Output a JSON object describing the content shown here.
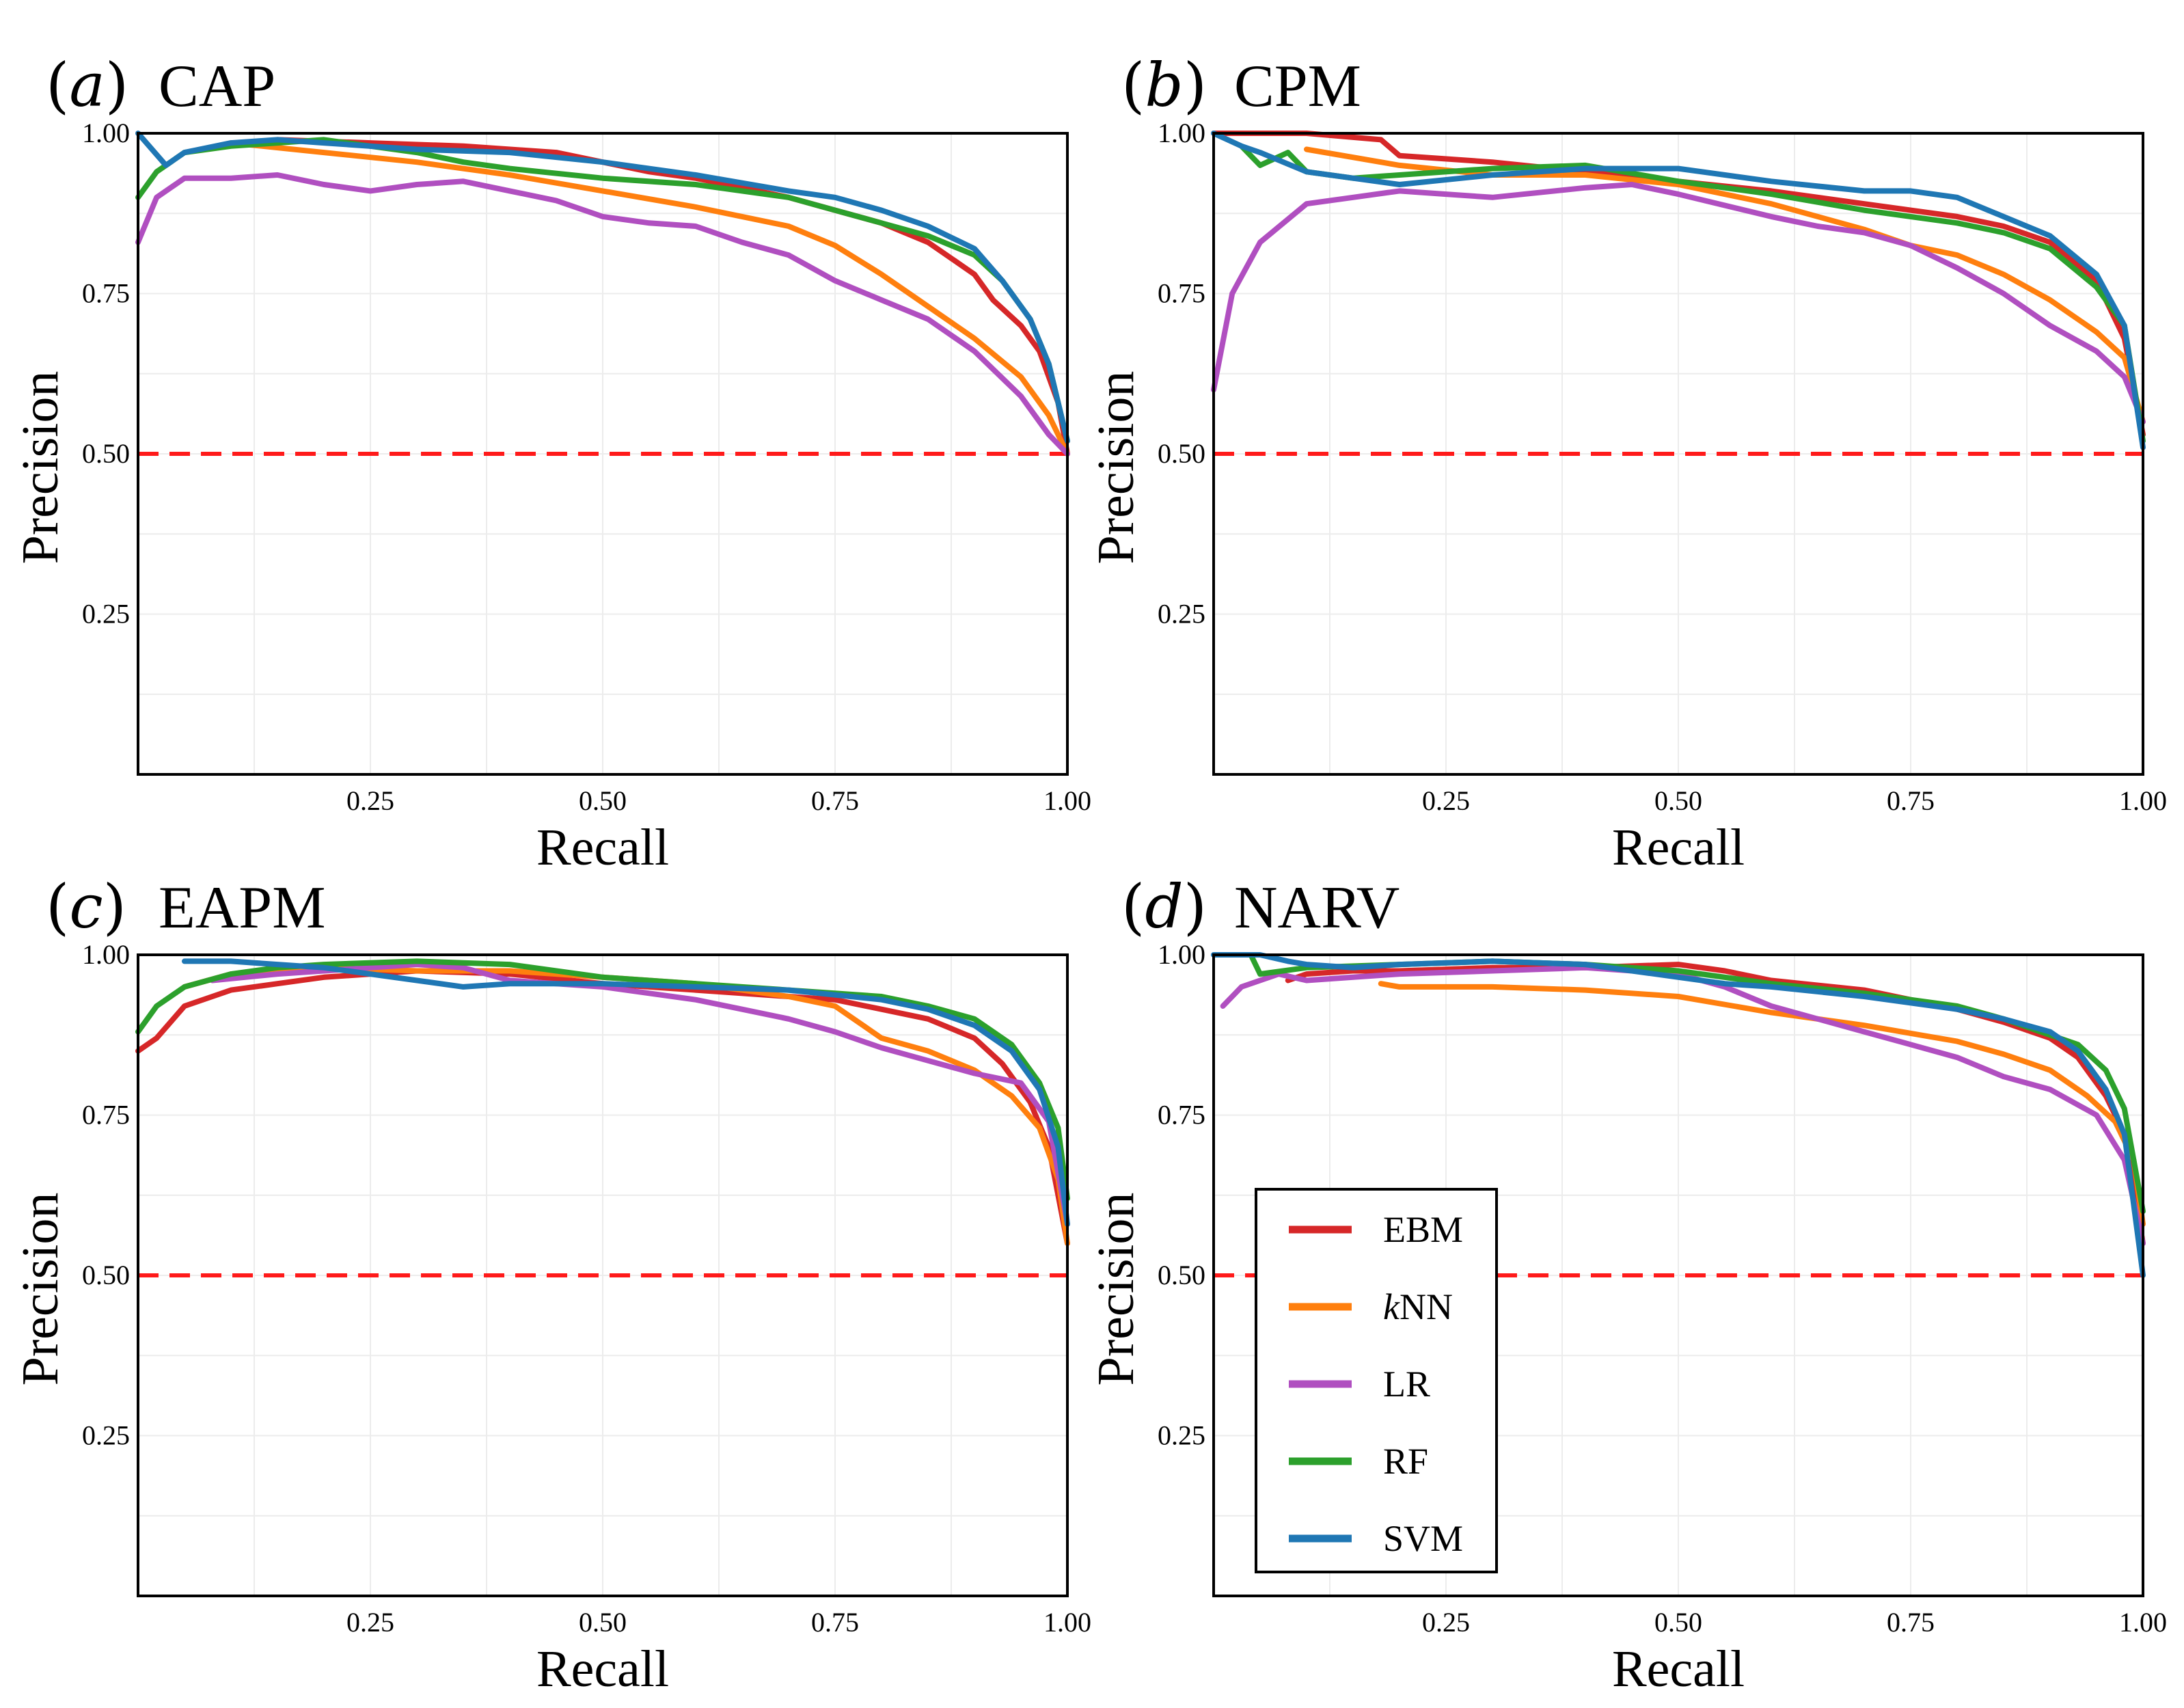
{
  "legend": {
    "items": [
      {
        "label": "EBM",
        "color": "#d62728"
      },
      {
        "label": "NN",
        "prefix": "k",
        "color": "#ff7f0e"
      },
      {
        "label": "LR",
        "color": "#b04fc0"
      },
      {
        "label": "RF",
        "color": "#2ca02c"
      },
      {
        "label": "SVM",
        "color": "#1f77b4"
      }
    ]
  },
  "chart_data": [
    {
      "type": "line",
      "panel": "a",
      "title": "CAP",
      "xlabel": "Recall",
      "ylabel": "Precision",
      "xlim": [
        0.0,
        1.0
      ],
      "ylim": [
        0.0,
        1.0
      ],
      "xticks": [
        "0.25",
        "0.50",
        "0.75",
        "1.00"
      ],
      "yticks": [
        "0.25",
        "0.50",
        "0.75",
        "1.00"
      ],
      "baseline": 0.5,
      "series": [
        {
          "name": "EBM",
          "x": [
            0.15,
            0.25,
            0.35,
            0.45,
            0.5,
            0.55,
            0.6,
            0.65,
            0.7,
            0.75,
            0.8,
            0.85,
            0.88,
            0.9,
            0.92,
            0.95,
            0.97,
            0.99,
            1.0
          ],
          "y": [
            0.99,
            0.985,
            0.98,
            0.97,
            0.955,
            0.94,
            0.93,
            0.915,
            0.9,
            0.88,
            0.86,
            0.83,
            0.8,
            0.78,
            0.74,
            0.7,
            0.66,
            0.58,
            0.5
          ]
        },
        {
          "name": "kNN",
          "x": [
            0.1,
            0.2,
            0.3,
            0.4,
            0.5,
            0.6,
            0.7,
            0.75,
            0.8,
            0.85,
            0.9,
            0.95,
            0.98,
            1.0
          ],
          "y": [
            0.985,
            0.97,
            0.955,
            0.935,
            0.91,
            0.885,
            0.855,
            0.825,
            0.78,
            0.73,
            0.68,
            0.62,
            0.56,
            0.5
          ]
        },
        {
          "name": "LR",
          "x": [
            0.0,
            0.02,
            0.05,
            0.1,
            0.15,
            0.2,
            0.25,
            0.3,
            0.35,
            0.4,
            0.45,
            0.5,
            0.55,
            0.6,
            0.65,
            0.7,
            0.75,
            0.8,
            0.85,
            0.9,
            0.95,
            0.98,
            1.0
          ],
          "y": [
            0.83,
            0.9,
            0.93,
            0.93,
            0.935,
            0.92,
            0.91,
            0.92,
            0.925,
            0.91,
            0.895,
            0.87,
            0.86,
            0.855,
            0.83,
            0.81,
            0.77,
            0.74,
            0.71,
            0.66,
            0.59,
            0.53,
            0.5
          ]
        },
        {
          "name": "RF",
          "x": [
            0.0,
            0.02,
            0.05,
            0.1,
            0.15,
            0.2,
            0.25,
            0.3,
            0.35,
            0.4,
            0.5,
            0.6,
            0.7,
            0.75,
            0.8,
            0.85,
            0.9,
            0.93,
            0.96,
            0.98,
            1.0
          ],
          "y": [
            0.9,
            0.94,
            0.97,
            0.98,
            0.985,
            0.99,
            0.98,
            0.97,
            0.955,
            0.945,
            0.93,
            0.92,
            0.9,
            0.88,
            0.86,
            0.84,
            0.81,
            0.77,
            0.71,
            0.64,
            0.52
          ]
        },
        {
          "name": "SVM",
          "x": [
            0.0,
            0.03,
            0.05,
            0.1,
            0.15,
            0.2,
            0.3,
            0.4,
            0.5,
            0.6,
            0.7,
            0.75,
            0.8,
            0.85,
            0.9,
            0.93,
            0.96,
            0.98,
            1.0
          ],
          "y": [
            1.0,
            0.95,
            0.97,
            0.985,
            0.99,
            0.985,
            0.975,
            0.97,
            0.955,
            0.935,
            0.91,
            0.9,
            0.88,
            0.855,
            0.82,
            0.77,
            0.71,
            0.64,
            0.52
          ]
        }
      ]
    },
    {
      "type": "line",
      "panel": "b",
      "title": "CPM",
      "xlabel": "Recall",
      "ylabel": "Precision",
      "xlim": [
        0.0,
        1.0
      ],
      "ylim": [
        0.0,
        1.0
      ],
      "xticks": [
        "0.25",
        "0.50",
        "0.75",
        "1.00"
      ],
      "yticks": [
        "0.25",
        "0.50",
        "0.75",
        "1.00"
      ],
      "baseline": 0.5,
      "series": [
        {
          "name": "EBM",
          "x": [
            0.0,
            0.1,
            0.18,
            0.2,
            0.3,
            0.4,
            0.5,
            0.6,
            0.7,
            0.8,
            0.85,
            0.9,
            0.95,
            0.98,
            1.0
          ],
          "y": [
            1.0,
            1.0,
            0.99,
            0.965,
            0.955,
            0.94,
            0.925,
            0.91,
            0.89,
            0.87,
            0.855,
            0.83,
            0.77,
            0.68,
            0.53
          ]
        },
        {
          "name": "kNN",
          "x": [
            0.1,
            0.2,
            0.3,
            0.4,
            0.5,
            0.6,
            0.7,
            0.75,
            0.8,
            0.85,
            0.9,
            0.95,
            0.98,
            1.0
          ],
          "y": [
            0.975,
            0.95,
            0.935,
            0.935,
            0.92,
            0.89,
            0.85,
            0.825,
            0.81,
            0.78,
            0.74,
            0.69,
            0.65,
            0.55
          ]
        },
        {
          "name": "LR",
          "x": [
            0.0,
            0.02,
            0.05,
            0.1,
            0.15,
            0.2,
            0.25,
            0.3,
            0.4,
            0.45,
            0.5,
            0.6,
            0.65,
            0.7,
            0.75,
            0.8,
            0.85,
            0.9,
            0.95,
            0.98,
            1.0
          ],
          "y": [
            0.6,
            0.75,
            0.83,
            0.89,
            0.9,
            0.91,
            0.905,
            0.9,
            0.915,
            0.92,
            0.905,
            0.87,
            0.855,
            0.845,
            0.825,
            0.79,
            0.75,
            0.7,
            0.66,
            0.62,
            0.55
          ]
        },
        {
          "name": "RF",
          "x": [
            0.03,
            0.05,
            0.08,
            0.1,
            0.15,
            0.2,
            0.3,
            0.4,
            0.5,
            0.6,
            0.7,
            0.8,
            0.85,
            0.9,
            0.95,
            0.98,
            1.0
          ],
          "y": [
            0.98,
            0.95,
            0.97,
            0.94,
            0.93,
            0.935,
            0.945,
            0.95,
            0.925,
            0.905,
            0.88,
            0.86,
            0.845,
            0.82,
            0.76,
            0.7,
            0.52
          ]
        },
        {
          "name": "SVM",
          "x": [
            0.0,
            0.03,
            0.05,
            0.1,
            0.15,
            0.2,
            0.3,
            0.4,
            0.5,
            0.6,
            0.7,
            0.75,
            0.8,
            0.85,
            0.9,
            0.95,
            0.98,
            1.0
          ],
          "y": [
            1.0,
            0.98,
            0.97,
            0.94,
            0.93,
            0.92,
            0.935,
            0.945,
            0.945,
            0.925,
            0.91,
            0.91,
            0.9,
            0.87,
            0.84,
            0.78,
            0.7,
            0.51
          ]
        }
      ]
    },
    {
      "type": "line",
      "panel": "c",
      "title": "EAPM",
      "xlabel": "Recall",
      "ylabel": "Precision",
      "xlim": [
        0.0,
        1.0
      ],
      "ylim": [
        0.0,
        1.0
      ],
      "xticks": [
        "0.25",
        "0.50",
        "0.75",
        "1.00"
      ],
      "yticks": [
        "0.25",
        "0.50",
        "0.75",
        "1.00"
      ],
      "baseline": 0.5,
      "series": [
        {
          "name": "EBM",
          "x": [
            0.0,
            0.02,
            0.05,
            0.1,
            0.15,
            0.2,
            0.3,
            0.4,
            0.5,
            0.6,
            0.7,
            0.75,
            0.8,
            0.85,
            0.9,
            0.93,
            0.96,
            0.98,
            1.0
          ],
          "y": [
            0.85,
            0.87,
            0.92,
            0.945,
            0.955,
            0.965,
            0.975,
            0.97,
            0.955,
            0.945,
            0.935,
            0.93,
            0.915,
            0.9,
            0.87,
            0.83,
            0.77,
            0.7,
            0.55
          ]
        },
        {
          "name": "kNN",
          "x": [
            0.05,
            0.1,
            0.2,
            0.3,
            0.4,
            0.5,
            0.6,
            0.7,
            0.75,
            0.8,
            0.85,
            0.9,
            0.94,
            0.97,
            0.99,
            1.0
          ],
          "y": [
            0.95,
            0.97,
            0.98,
            0.975,
            0.975,
            0.965,
            0.955,
            0.935,
            0.92,
            0.87,
            0.85,
            0.82,
            0.78,
            0.73,
            0.65,
            0.55
          ]
        },
        {
          "name": "LR",
          "x": [
            0.08,
            0.15,
            0.2,
            0.3,
            0.35,
            0.4,
            0.45,
            0.5,
            0.55,
            0.6,
            0.65,
            0.7,
            0.75,
            0.8,
            0.85,
            0.9,
            0.95,
            0.98,
            1.0
          ],
          "y": [
            0.96,
            0.97,
            0.975,
            0.985,
            0.98,
            0.96,
            0.955,
            0.95,
            0.94,
            0.93,
            0.915,
            0.9,
            0.88,
            0.855,
            0.835,
            0.815,
            0.8,
            0.74,
            0.58
          ]
        },
        {
          "name": "RF",
          "x": [
            0.0,
            0.02,
            0.05,
            0.1,
            0.15,
            0.2,
            0.3,
            0.4,
            0.5,
            0.6,
            0.7,
            0.8,
            0.85,
            0.9,
            0.94,
            0.97,
            0.99,
            1.0
          ],
          "y": [
            0.88,
            0.92,
            0.95,
            0.97,
            0.98,
            0.985,
            0.99,
            0.985,
            0.965,
            0.955,
            0.945,
            0.935,
            0.92,
            0.9,
            0.86,
            0.8,
            0.73,
            0.62
          ]
        },
        {
          "name": "SVM",
          "x": [
            0.05,
            0.1,
            0.15,
            0.2,
            0.3,
            0.35,
            0.4,
            0.5,
            0.6,
            0.7,
            0.8,
            0.85,
            0.9,
            0.94,
            0.97,
            0.99,
            1.0
          ],
          "y": [
            0.99,
            0.99,
            0.985,
            0.98,
            0.96,
            0.95,
            0.955,
            0.955,
            0.95,
            0.945,
            0.93,
            0.915,
            0.89,
            0.85,
            0.79,
            0.7,
            0.58
          ]
        }
      ]
    },
    {
      "type": "line",
      "panel": "d",
      "title": "NARV",
      "xlabel": "Recall",
      "ylabel": "Precision",
      "xlim": [
        0.0,
        1.0
      ],
      "ylim": [
        0.0,
        1.0
      ],
      "xticks": [
        "0.25",
        "0.50",
        "0.75",
        "1.00"
      ],
      "yticks": [
        "0.25",
        "0.50",
        "0.75",
        "1.00"
      ],
      "baseline": 0.5,
      "series": [
        {
          "name": "EBM",
          "x": [
            0.08,
            0.1,
            0.15,
            0.2,
            0.3,
            0.4,
            0.5,
            0.55,
            0.6,
            0.7,
            0.75,
            0.8,
            0.85,
            0.9,
            0.93,
            0.96,
            0.98,
            1.0
          ],
          "y": [
            0.96,
            0.97,
            0.975,
            0.975,
            0.98,
            0.98,
            0.985,
            0.975,
            0.96,
            0.945,
            0.93,
            0.915,
            0.895,
            0.87,
            0.84,
            0.78,
            0.72,
            0.55
          ]
        },
        {
          "name": "kNN",
          "x": [
            0.18,
            0.2,
            0.3,
            0.4,
            0.5,
            0.6,
            0.7,
            0.8,
            0.85,
            0.9,
            0.94,
            0.97,
            0.99,
            1.0
          ],
          "y": [
            0.955,
            0.95,
            0.95,
            0.945,
            0.935,
            0.91,
            0.89,
            0.865,
            0.845,
            0.82,
            0.78,
            0.74,
            0.68,
            0.58
          ]
        },
        {
          "name": "LR",
          "x": [
            0.01,
            0.03,
            0.07,
            0.1,
            0.15,
            0.2,
            0.3,
            0.4,
            0.5,
            0.55,
            0.6,
            0.65,
            0.7,
            0.75,
            0.8,
            0.85,
            0.9,
            0.95,
            0.98,
            1.0
          ],
          "y": [
            0.92,
            0.95,
            0.97,
            0.96,
            0.965,
            0.97,
            0.975,
            0.98,
            0.97,
            0.95,
            0.92,
            0.9,
            0.88,
            0.86,
            0.84,
            0.81,
            0.79,
            0.75,
            0.68,
            0.55
          ]
        },
        {
          "name": "RF",
          "x": [
            0.04,
            0.05,
            0.1,
            0.2,
            0.3,
            0.4,
            0.5,
            0.6,
            0.7,
            0.8,
            0.85,
            0.9,
            0.93,
            0.96,
            0.98,
            1.0
          ],
          "y": [
            1.0,
            0.97,
            0.98,
            0.985,
            0.99,
            0.985,
            0.975,
            0.955,
            0.94,
            0.92,
            0.9,
            0.875,
            0.86,
            0.82,
            0.76,
            0.6
          ]
        },
        {
          "name": "SVM",
          "x": [
            0.0,
            0.05,
            0.08,
            0.1,
            0.15,
            0.2,
            0.3,
            0.4,
            0.5,
            0.55,
            0.6,
            0.7,
            0.8,
            0.85,
            0.9,
            0.93,
            0.96,
            0.98,
            1.0
          ],
          "y": [
            1.0,
            1.0,
            0.99,
            0.985,
            0.98,
            0.985,
            0.99,
            0.985,
            0.965,
            0.955,
            0.95,
            0.935,
            0.915,
            0.9,
            0.88,
            0.85,
            0.79,
            0.72,
            0.5
          ]
        }
      ]
    }
  ]
}
